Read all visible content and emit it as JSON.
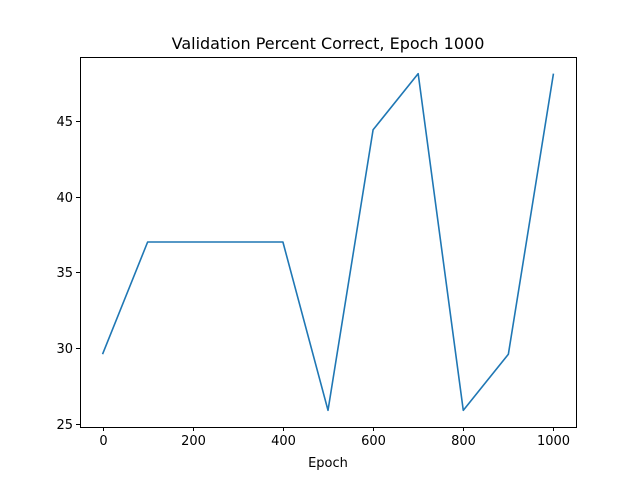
{
  "chart_data": {
    "type": "line",
    "title": "Validation Percent Correct, Epoch 1000",
    "xlabel": "Epoch",
    "ylabel": "",
    "x": [
      0,
      100,
      200,
      300,
      400,
      500,
      600,
      700,
      800,
      900,
      1000
    ],
    "series": [
      {
        "values": [
          29.6,
          37.0,
          37.0,
          37.0,
          37.0,
          25.9,
          44.4,
          48.1,
          25.9,
          29.6,
          48.1
        ],
        "color": "#1f77b4"
      }
    ],
    "xlim": [
      -50,
      1050
    ],
    "ylim": [
      24.8,
      49.2
    ],
    "xticks": [
      0,
      200,
      400,
      600,
      800,
      1000
    ],
    "xtick_labels": [
      "0",
      "200",
      "400",
      "600",
      "800",
      "1000"
    ],
    "yticks": [
      25,
      30,
      35,
      40,
      45
    ],
    "ytick_labels": [
      "25",
      "30",
      "35",
      "40",
      "45"
    ],
    "grid": false,
    "legend": "none"
  }
}
